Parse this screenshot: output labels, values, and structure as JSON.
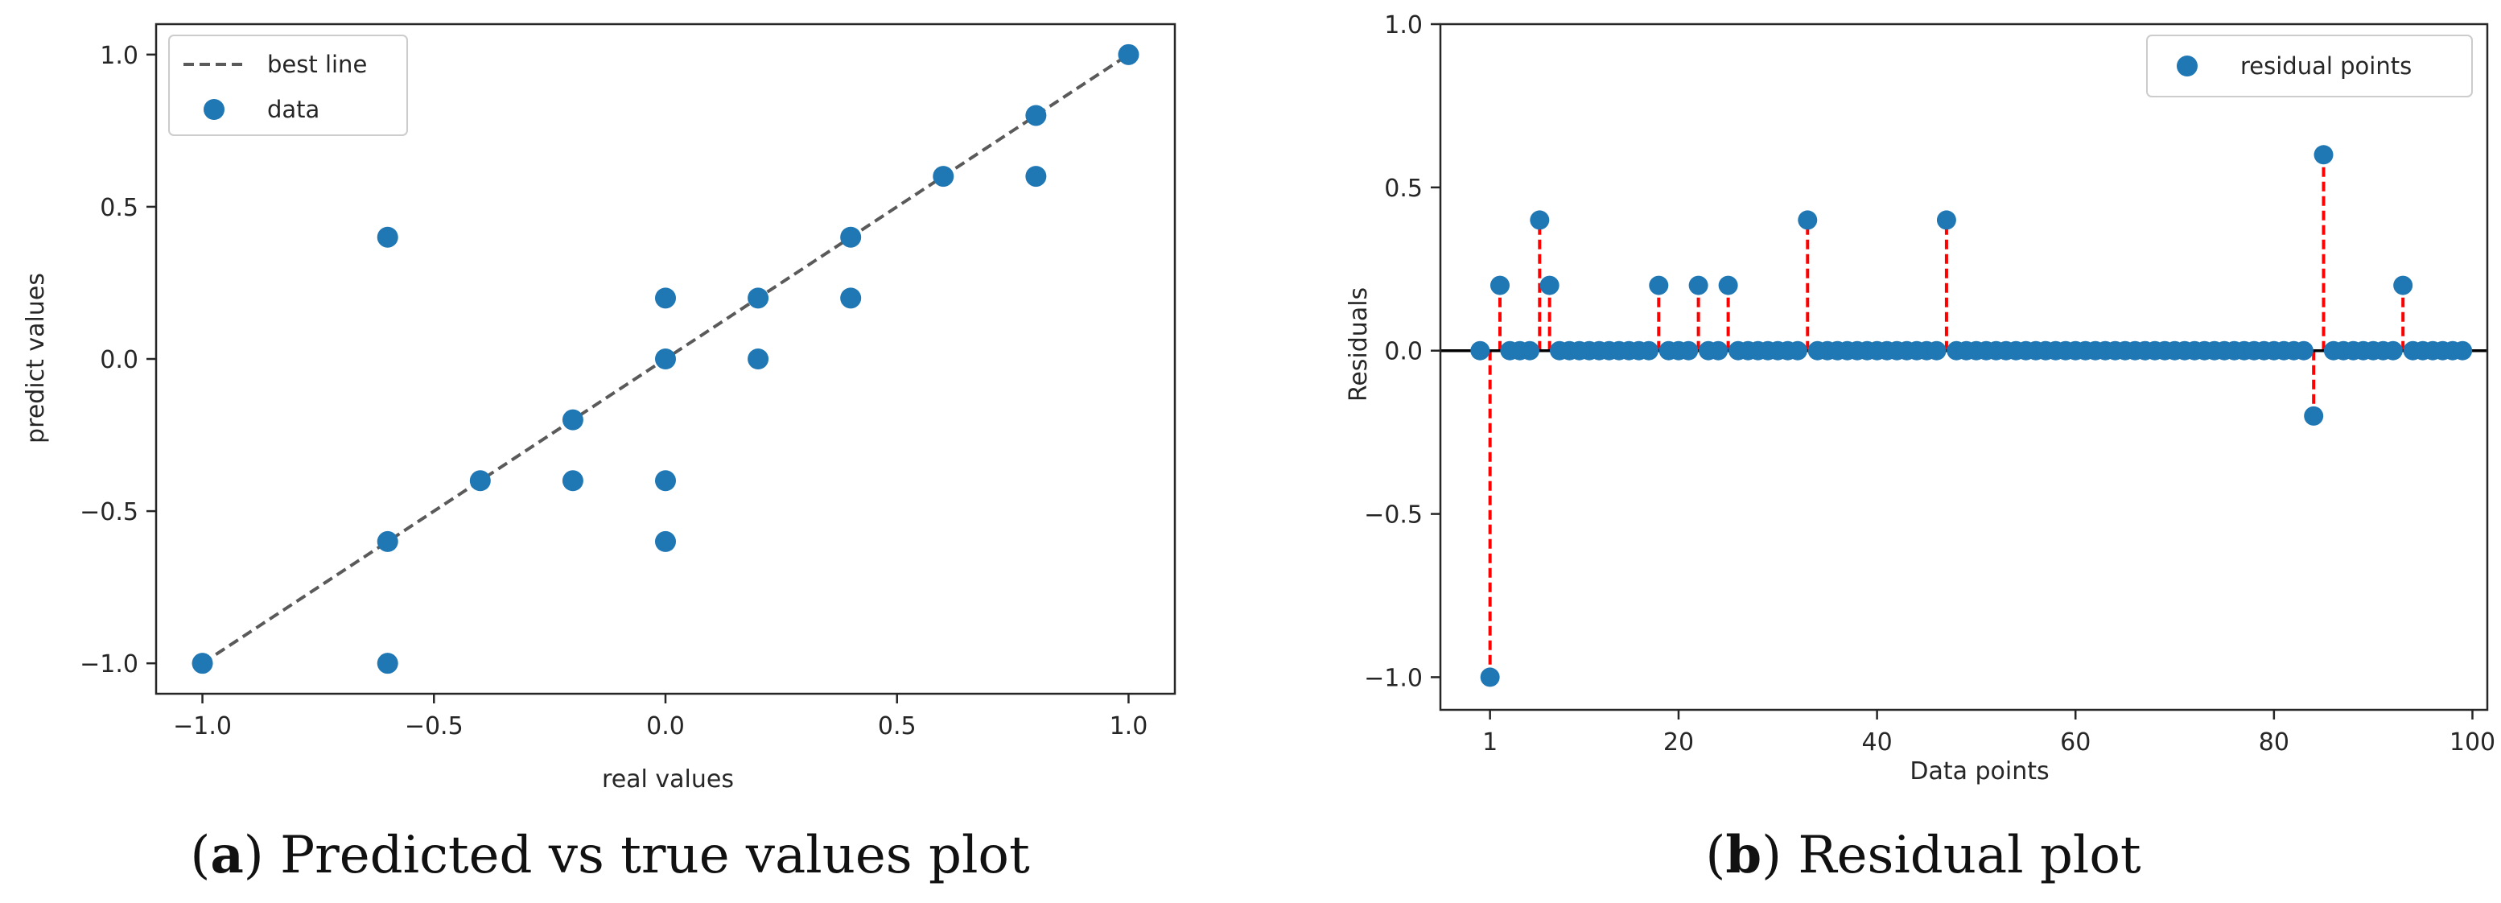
{
  "chart_data": [
    {
      "type": "scatter",
      "caption": {
        "open": "(",
        "letter": "a",
        "close": ")",
        "text": " Predicted vs true values plot"
      },
      "xlabel": "real values",
      "ylabel": "predict values",
      "xlim": [
        -1.1,
        1.1
      ],
      "ylim": [
        -1.1,
        1.1
      ],
      "xticks": [
        -1.0,
        -0.5,
        0.0,
        0.5,
        1.0
      ],
      "xtick_labels": [
        "−1.0",
        "−0.5",
        "0.0",
        "0.5",
        "1.0"
      ],
      "yticks": [
        -1.0,
        -0.5,
        0.0,
        0.5,
        1.0
      ],
      "ytick_labels": [
        "−1.0",
        "−0.5",
        "0.0",
        "0.5",
        "1.0"
      ],
      "grid": false,
      "legend": {
        "position": "top-left",
        "entries": [
          "best line",
          "data"
        ]
      },
      "series": [
        {
          "name": "best line",
          "kind": "dashed-line",
          "x": [
            -1.0,
            1.0
          ],
          "y": [
            -1.0,
            1.0
          ],
          "color": "#5a5a5a"
        },
        {
          "name": "data",
          "kind": "scatter",
          "color": "#1f77b4",
          "points": [
            [
              -1.0,
              -1.0
            ],
            [
              -0.6,
              0.4
            ],
            [
              -0.6,
              -0.6
            ],
            [
              -0.6,
              -1.0
            ],
            [
              -0.4,
              -0.4
            ],
            [
              -0.2,
              -0.2
            ],
            [
              -0.2,
              -0.4
            ],
            [
              0.0,
              0.2
            ],
            [
              0.0,
              0.0
            ],
            [
              0.0,
              -0.4
            ],
            [
              0.0,
              -0.6
            ],
            [
              0.2,
              0.2
            ],
            [
              0.2,
              0.0
            ],
            [
              0.4,
              0.4
            ],
            [
              0.4,
              0.2
            ],
            [
              0.6,
              0.6
            ],
            [
              0.8,
              0.8
            ],
            [
              0.8,
              0.6
            ],
            [
              1.0,
              1.0
            ]
          ]
        }
      ]
    },
    {
      "type": "scatter",
      "caption": {
        "open": "(",
        "letter": "b",
        "close": ")",
        "text": " Residual plot"
      },
      "xlabel": "Data points",
      "ylabel": "Residuals",
      "xlim": [
        -4,
        101.5
      ],
      "ylim": [
        -1.1,
        1.0
      ],
      "xticks": [
        1,
        20,
        40,
        60,
        80,
        100
      ],
      "xtick_labels": [
        "1",
        "20",
        "40",
        "60",
        "80",
        "100"
      ],
      "yticks": [
        -1.0,
        -0.5,
        0.0,
        0.5,
        1.0
      ],
      "ytick_labels": [
        "−1.0",
        "−0.5",
        "0.0",
        "0.5",
        "1.0"
      ],
      "grid": false,
      "zero_line": {
        "y": 0.0,
        "color": "#000000"
      },
      "stem_color": "#ff0000",
      "legend": {
        "position": "top-right",
        "entries": [
          "residual points"
        ]
      },
      "series": [
        {
          "name": "residual points",
          "color": "#1f77b4",
          "x_range": [
            0,
            99
          ],
          "default_residual": 0.0,
          "nonzero": [
            [
              1,
              -1.0
            ],
            [
              2,
              0.2
            ],
            [
              6,
              0.4
            ],
            [
              7,
              0.2
            ],
            [
              18,
              0.2
            ],
            [
              22,
              0.2
            ],
            [
              25,
              0.2
            ],
            [
              33,
              0.4
            ],
            [
              47,
              0.4
            ],
            [
              84,
              -0.2
            ],
            [
              85,
              0.6
            ],
            [
              93,
              0.2
            ]
          ]
        }
      ]
    }
  ]
}
